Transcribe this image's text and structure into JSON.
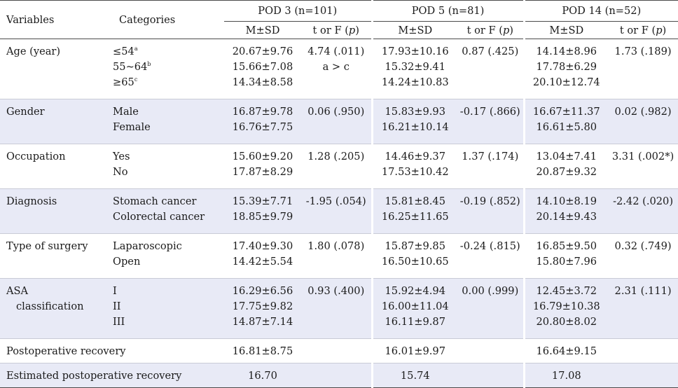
{
  "header": {
    "variables": "Variables",
    "categories": "Categories",
    "groups": [
      "POD 3 (n=101)",
      "POD 5 (n=81)",
      "POD 14 (n=52)"
    ],
    "msd": "M±SD",
    "tf_prefix": "t or F (",
    "tf_p": "p",
    "tf_suffix": ")"
  },
  "rows": [
    {
      "variable": [
        "Age (year)"
      ],
      "categories": [
        {
          "text": "≤54",
          "sup": "a"
        },
        {
          "text": "55~64",
          "sup": "b"
        },
        {
          "text": "≥65",
          "sup": "c"
        }
      ],
      "pod3": {
        "msd": [
          "20.67±9.76",
          "15.66±7.08",
          "14.34±8.58"
        ],
        "stat": [
          "4.74 (.011)",
          "a > c"
        ]
      },
      "pod5": {
        "msd": [
          "17.93±10.16",
          "15.32±9.41",
          "14.24±10.83"
        ],
        "stat": [
          "0.87 (.425)"
        ]
      },
      "pod14": {
        "msd": [
          "14.14±8.96",
          "17.78±6.29",
          "20.10±12.74"
        ],
        "stat": [
          "1.73 (.189)"
        ]
      }
    },
    {
      "variable": [
        "Gender"
      ],
      "categories": [
        {
          "text": "Male",
          "sup": ""
        },
        {
          "text": "Female",
          "sup": ""
        }
      ],
      "pod3": {
        "msd": [
          "16.87±9.78",
          "16.76±7.75"
        ],
        "stat": [
          "0.06 (.950)"
        ]
      },
      "pod5": {
        "msd": [
          "15.83±9.93",
          "16.21±10.14"
        ],
        "stat": [
          "-0.17 (.866)"
        ]
      },
      "pod14": {
        "msd": [
          "16.67±11.37",
          "16.61±5.80"
        ],
        "stat": [
          "0.02 (.982)"
        ]
      }
    },
    {
      "variable": [
        "Occupation"
      ],
      "categories": [
        {
          "text": "Yes",
          "sup": ""
        },
        {
          "text": "No",
          "sup": ""
        }
      ],
      "pod3": {
        "msd": [
          "15.60±9.20",
          "17.87±8.29"
        ],
        "stat": [
          "1.28 (.205)"
        ]
      },
      "pod5": {
        "msd": [
          "14.46±9.37",
          "17.53±10.42"
        ],
        "stat": [
          "1.37 (.174)"
        ]
      },
      "pod14": {
        "msd": [
          "13.04±7.41",
          "20.87±9.32"
        ],
        "stat": [
          "3.31 (.002*)"
        ]
      }
    },
    {
      "variable": [
        "Diagnosis"
      ],
      "categories": [
        {
          "text": "Stomach cancer",
          "sup": ""
        },
        {
          "text": "Colorectal cancer",
          "sup": ""
        }
      ],
      "pod3": {
        "msd": [
          "15.39±7.71",
          "18.85±9.79"
        ],
        "stat": [
          "-1.95 (.054)"
        ]
      },
      "pod5": {
        "msd": [
          "15.81±8.45",
          "16.25±11.65"
        ],
        "stat": [
          "-0.19 (.852)"
        ]
      },
      "pod14": {
        "msd": [
          "14.10±8.19",
          "20.14±9.43"
        ],
        "stat": [
          "-2.42 (.020)"
        ]
      }
    },
    {
      "variable": [
        "Type of surgery"
      ],
      "categories": [
        {
          "text": "Laparoscopic",
          "sup": ""
        },
        {
          "text": "Open",
          "sup": ""
        }
      ],
      "pod3": {
        "msd": [
          "17.40±9.30",
          "14.42±5.54"
        ],
        "stat": [
          "1.80 (.078)"
        ]
      },
      "pod5": {
        "msd": [
          "15.87±9.85",
          "16.50±10.65"
        ],
        "stat": [
          "-0.24 (.815)"
        ]
      },
      "pod14": {
        "msd": [
          "16.85±9.50",
          "15.80±7.96"
        ],
        "stat": [
          "0.32 (.749)"
        ]
      }
    },
    {
      "variable": [
        "ASA",
        "classification"
      ],
      "categories": [
        {
          "text": "I",
          "sup": ""
        },
        {
          "text": "II",
          "sup": ""
        },
        {
          "text": "III",
          "sup": ""
        }
      ],
      "pod3": {
        "msd": [
          "16.29±6.56",
          "17.75±9.82",
          "14.87±7.14"
        ],
        "stat": [
          "0.93 (.400)"
        ]
      },
      "pod5": {
        "msd": [
          "15.92±4.94",
          "16.00±11.04",
          "16.11±9.87"
        ],
        "stat": [
          "0.00 (.999)"
        ]
      },
      "pod14": {
        "msd": [
          "12.45±3.72",
          "16.79±10.38",
          "20.80±8.02"
        ],
        "stat": [
          "2.31 (.111)"
        ]
      }
    }
  ],
  "summary": [
    {
      "label": "Postoperative recovery",
      "pod3": "16.81±8.75",
      "pod5": "16.01±9.97",
      "pod14": "16.64±9.15"
    },
    {
      "label": "Estimated postoperative recovery",
      "pod3": "16.70",
      "pod5": "15.74",
      "pod14": "17.08"
    }
  ]
}
